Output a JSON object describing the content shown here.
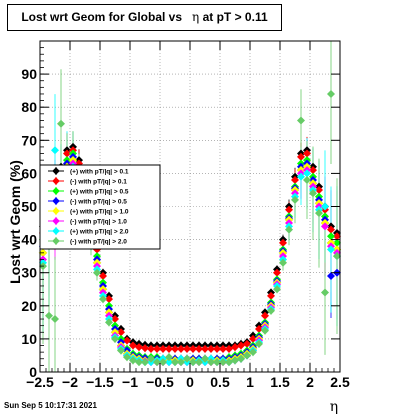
{
  "title": {
    "prefix": "Lost wrt Geom for Global vs",
    "symbol": "η",
    "suffix": "at pT > 0.11"
  },
  "timestamp": "Sun Sep  5 10:17:31 2021",
  "chart_data": {
    "type": "scatter",
    "title": "Lost wrt Geom for Global vs η at pT > 0.11",
    "xlabel": "η",
    "ylabel": "Lost wrt Geom (%)",
    "xlim": [
      -2.5,
      2.5
    ],
    "ylim": [
      0,
      100
    ],
    "x_ticks": [
      -2.5,
      -2,
      -1.5,
      -1,
      -0.5,
      0,
      0.5,
      1,
      1.5,
      2,
      2.5
    ],
    "x_tick_labels": [
      "−2.5",
      "−2",
      "−1.5",
      "−1",
      "−0.5",
      "0",
      "0.5",
      "1",
      "1.5",
      "2",
      "2.5"
    ],
    "y_ticks": [
      0,
      10,
      20,
      30,
      40,
      50,
      60,
      70,
      80,
      90
    ],
    "y_tick_labels": [
      "0",
      "10",
      "20",
      "30",
      "40",
      "50",
      "60",
      "70",
      "80",
      "90"
    ],
    "grid": true,
    "legend_position": "left",
    "series": [
      {
        "name": "(+) with pT/|q| > 0.1",
        "color": "#000000",
        "marker": "diamond",
        "x": [
          -2.45,
          -2.35,
          -2.25,
          -2.15,
          -2.05,
          -1.95,
          -1.85,
          -1.75,
          -1.65,
          -1.55,
          -1.45,
          -1.35,
          -1.25,
          -1.15,
          -1.05,
          -0.95,
          -0.85,
          -0.75,
          -0.65,
          -0.55,
          -0.45,
          -0.35,
          -0.25,
          -0.15,
          -0.05,
          0.05,
          0.15,
          0.25,
          0.35,
          0.45,
          0.55,
          0.65,
          0.75,
          0.85,
          0.95,
          1.05,
          1.15,
          1.25,
          1.35,
          1.45,
          1.55,
          1.65,
          1.75,
          1.85,
          1.95,
          2.05,
          2.15,
          2.25,
          2.35,
          2.45
        ],
        "y": [
          44,
          48,
          57,
          62,
          67,
          68,
          64,
          57,
          48,
          38,
          30,
          23,
          17,
          13,
          10,
          9,
          8.5,
          8.2,
          8,
          8,
          8,
          8,
          8,
          8,
          8,
          8,
          8,
          8,
          8,
          8,
          8,
          8,
          8,
          8.5,
          9,
          11,
          14,
          18,
          24,
          31,
          40,
          50,
          59,
          66,
          67,
          62,
          56,
          50,
          44,
          42
        ]
      },
      {
        "name": "(-) with pT/|q| > 0.1",
        "color": "#ff0000",
        "marker": "diamond",
        "x": [
          -2.45,
          -2.35,
          -2.25,
          -2.15,
          -2.05,
          -1.95,
          -1.85,
          -1.75,
          -1.65,
          -1.55,
          -1.45,
          -1.35,
          -1.25,
          -1.15,
          -1.05,
          -0.95,
          -0.85,
          -0.75,
          -0.65,
          -0.55,
          -0.45,
          -0.35,
          -0.25,
          -0.15,
          -0.05,
          0.05,
          0.15,
          0.25,
          0.35,
          0.45,
          0.55,
          0.65,
          0.75,
          0.85,
          0.95,
          1.05,
          1.15,
          1.25,
          1.35,
          1.45,
          1.55,
          1.65,
          1.75,
          1.85,
          1.95,
          2.05,
          2.15,
          2.25,
          2.35,
          2.45
        ],
        "y": [
          42,
          46,
          55,
          61,
          66,
          67,
          63,
          56,
          47,
          37,
          29,
          22,
          16,
          12,
          9.5,
          8,
          7.5,
          7.2,
          7,
          7,
          7,
          7,
          7,
          7,
          7,
          7,
          7,
          7,
          7,
          7,
          7,
          7,
          7.5,
          8,
          8.5,
          10,
          13,
          17,
          23,
          30,
          39,
          49,
          58,
          65,
          66,
          61,
          55,
          49,
          43,
          41
        ]
      },
      {
        "name": "(+) with pT/|q| > 0.5",
        "color": "#00ff00",
        "marker": "diamond",
        "x": [
          -2.45,
          -2.35,
          -2.25,
          -2.15,
          -2.05,
          -1.95,
          -1.85,
          -1.75,
          -1.65,
          -1.55,
          -1.45,
          -1.35,
          -1.25,
          -1.15,
          -1.05,
          -0.95,
          -0.85,
          -0.75,
          -0.65,
          -0.55,
          -0.45,
          -0.35,
          -0.25,
          -0.15,
          -0.05,
          0.05,
          0.15,
          0.25,
          0.35,
          0.45,
          0.55,
          0.65,
          0.75,
          0.85,
          0.95,
          1.05,
          1.15,
          1.25,
          1.35,
          1.45,
          1.55,
          1.65,
          1.75,
          1.85,
          1.95,
          2.05,
          2.15,
          2.25,
          2.35,
          2.45
        ],
        "y": [
          40,
          44,
          52,
          58,
          64,
          66,
          61,
          54,
          45,
          35,
          27,
          20,
          14,
          10,
          7,
          5.5,
          5,
          4.5,
          4.5,
          4.5,
          4,
          4,
          4,
          4,
          4,
          4,
          4,
          4,
          4,
          4,
          4,
          4.5,
          5,
          5.5,
          6.5,
          8,
          11,
          15,
          21,
          28,
          37,
          47,
          56,
          63,
          64,
          59,
          53,
          47,
          41,
          39
        ]
      },
      {
        "name": "(-) with pT/|q| > 0.5",
        "color": "#0000ff",
        "marker": "diamond",
        "x": [
          -2.45,
          -2.35,
          -2.25,
          -2.15,
          -2.05,
          -1.95,
          -1.85,
          -1.75,
          -1.65,
          -1.55,
          -1.45,
          -1.35,
          -1.25,
          -1.15,
          -1.05,
          -0.95,
          -0.85,
          -0.75,
          -0.65,
          -0.55,
          -0.45,
          -0.35,
          -0.25,
          -0.15,
          -0.05,
          0.05,
          0.15,
          0.25,
          0.35,
          0.45,
          0.55,
          0.65,
          0.75,
          0.85,
          0.95,
          1.05,
          1.15,
          1.25,
          1.35,
          1.45,
          1.55,
          1.65,
          1.75,
          1.85,
          1.95,
          2.05,
          2.15,
          2.25,
          2.35,
          2.45
        ],
        "y": [
          38,
          43,
          51,
          57,
          63,
          65,
          60,
          53,
          44,
          34,
          26,
          19,
          13,
          9,
          6.5,
          5,
          4.5,
          4.2,
          4,
          4,
          4,
          4,
          4,
          4,
          4,
          4,
          4,
          4,
          4,
          4,
          4,
          4,
          4.5,
          5,
          6,
          7.5,
          10.5,
          14.5,
          20.5,
          27.5,
          36.5,
          46.5,
          55.5,
          62,
          63,
          58,
          52,
          46,
          29,
          30
        ]
      },
      {
        "name": "(+) with pT/|q| > 1.0",
        "color": "#ffff00",
        "marker": "diamond",
        "x": [
          -2.45,
          -2.35,
          -2.25,
          -2.15,
          -2.05,
          -1.95,
          -1.85,
          -1.75,
          -1.65,
          -1.55,
          -1.45,
          -1.35,
          -1.25,
          -1.15,
          -1.05,
          -0.95,
          -0.85,
          -0.75,
          -0.65,
          -0.55,
          -0.45,
          -0.35,
          -0.25,
          -0.15,
          -0.05,
          0.05,
          0.15,
          0.25,
          0.35,
          0.45,
          0.55,
          0.65,
          0.75,
          0.85,
          0.95,
          1.05,
          1.15,
          1.25,
          1.35,
          1.45,
          1.55,
          1.65,
          1.75,
          1.85,
          1.95,
          2.05,
          2.15,
          2.25,
          2.35,
          2.45
        ],
        "y": [
          36,
          42,
          50,
          56,
          62,
          64,
          59,
          52,
          43,
          33,
          25,
          18,
          12,
          8,
          5.5,
          4.5,
          4,
          3.5,
          3.5,
          3.5,
          3.5,
          3.5,
          3.5,
          3.5,
          3.5,
          3.5,
          3.5,
          3.5,
          3.5,
          3.5,
          3.5,
          3.5,
          4,
          4.5,
          5.5,
          7,
          10,
          14,
          20,
          27,
          36,
          46,
          55,
          61,
          62,
          57,
          51,
          45,
          39,
          37
        ]
      },
      {
        "name": "(-) with pT/|q| > 1.0",
        "color": "#ff00ff",
        "marker": "diamond",
        "x": [
          -2.45,
          -2.35,
          -2.25,
          -2.15,
          -2.05,
          -1.95,
          -1.85,
          -1.75,
          -1.65,
          -1.55,
          -1.45,
          -1.35,
          -1.25,
          -1.15,
          -1.05,
          -0.95,
          -0.85,
          -0.75,
          -0.65,
          -0.55,
          -0.45,
          -0.35,
          -0.25,
          -0.15,
          -0.05,
          0.05,
          0.15,
          0.25,
          0.35,
          0.45,
          0.55,
          0.65,
          0.75,
          0.85,
          0.95,
          1.05,
          1.15,
          1.25,
          1.35,
          1.45,
          1.55,
          1.65,
          1.75,
          1.85,
          1.95,
          2.05,
          2.15,
          2.25,
          2.35,
          2.45
        ],
        "y": [
          34,
          40,
          49,
          55,
          61,
          63,
          58,
          51,
          42,
          32,
          24,
          17,
          11,
          7.5,
          5,
          4,
          3.5,
          3.2,
          3,
          3,
          3,
          3,
          3,
          3,
          3,
          3,
          3,
          3,
          3,
          3,
          3,
          3,
          3.5,
          4,
          5,
          6.5,
          9.5,
          13.5,
          19.5,
          26.5,
          35,
          45,
          54,
          60,
          61,
          56,
          50,
          44,
          38,
          36
        ]
      },
      {
        "name": "(+) with pT/|q| > 2.0",
        "color": "#00ffff",
        "marker": "diamond",
        "x": [
          -2.45,
          -2.35,
          -2.25,
          -2.15,
          -2.05,
          -1.95,
          -1.85,
          -1.75,
          -1.65,
          -1.55,
          -1.45,
          -1.35,
          -1.25,
          -1.15,
          -1.05,
          -0.95,
          -0.85,
          -0.75,
          -0.65,
          -0.55,
          -0.45,
          -0.35,
          -0.25,
          -0.15,
          -0.05,
          0.05,
          0.15,
          0.25,
          0.35,
          0.45,
          0.55,
          0.65,
          0.75,
          0.85,
          0.95,
          1.05,
          1.15,
          1.25,
          1.35,
          1.45,
          1.55,
          1.65,
          1.75,
          1.85,
          1.95,
          2.05,
          2.15,
          2.25,
          2.35,
          2.45
        ],
        "y": [
          33,
          39,
          67,
          54,
          60,
          62,
          57,
          50,
          41,
          31,
          23,
          16,
          10.5,
          7,
          5,
          4,
          3.5,
          3,
          3,
          3.5,
          4,
          3,
          3,
          4,
          3,
          3,
          3.5,
          3,
          4,
          3,
          3.5,
          3,
          3.5,
          4,
          5,
          6.5,
          9,
          13,
          19,
          26,
          34,
          44,
          53,
          59,
          60,
          55,
          49,
          50,
          37,
          35
        ]
      },
      {
        "name": "(-) with pT/|q| > 2.0",
        "color": "#66cc66",
        "marker": "diamond",
        "x": [
          -2.45,
          -2.35,
          -2.25,
          -2.15,
          -2.05,
          -1.95,
          -1.85,
          -1.75,
          -1.65,
          -1.55,
          -1.45,
          -1.35,
          -1.25,
          -1.15,
          -1.05,
          -0.95,
          -0.85,
          -0.75,
          -0.65,
          -0.55,
          -0.45,
          -0.35,
          -0.25,
          -0.15,
          -0.05,
          0.05,
          0.15,
          0.25,
          0.35,
          0.45,
          0.55,
          0.65,
          0.75,
          0.85,
          0.95,
          1.05,
          1.15,
          1.25,
          1.35,
          1.45,
          1.55,
          1.65,
          1.75,
          1.85,
          1.95,
          2.05,
          2.15,
          2.25,
          2.35,
          2.45
        ],
        "y": [
          32,
          17,
          16,
          75,
          58,
          61,
          56,
          49,
          40,
          30,
          22,
          15,
          10,
          6.5,
          4.5,
          3.5,
          3,
          3,
          4,
          3,
          3,
          4.5,
          3,
          3,
          4,
          3,
          3,
          4,
          3,
          3,
          3,
          3,
          3.5,
          4,
          5,
          6,
          8.5,
          12.5,
          18.5,
          25,
          33,
          43,
          52,
          76,
          58,
          54,
          48,
          24,
          84,
          35
        ]
      }
    ]
  }
}
